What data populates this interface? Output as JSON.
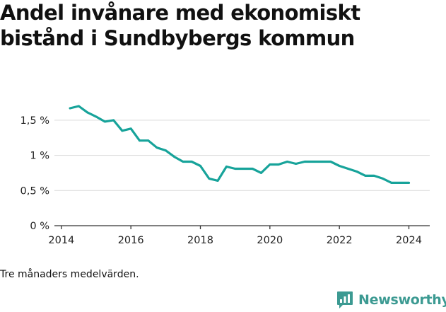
{
  "title_lines": [
    "Andel invånare med ekonomiskt",
    "bistånd i Sundbybergs kommun"
  ],
  "note": "Tre månaders medelvärden.",
  "brand": {
    "name": "Newsworthy",
    "icon": "newsworthy-logo-icon",
    "color": "#3c9a92"
  },
  "colors": {
    "line": "#17a39a",
    "grid": "#d9d9d9",
    "axis": "#333333"
  },
  "chart_data": {
    "type": "line",
    "title": "Andel invånare med ekonomiskt bistånd i Sundbybergs kommun",
    "xlabel": "",
    "ylabel": "",
    "xlim": [
      2013.8,
      2024.6
    ],
    "ylim": [
      0,
      1.7
    ],
    "x_ticks": [
      2014,
      2016,
      2018,
      2020,
      2022,
      2024
    ],
    "x_tick_labels": [
      "2014",
      "2016",
      "2018",
      "2020",
      "2022",
      "2024"
    ],
    "y_ticks": [
      0,
      0.5,
      1,
      1.5
    ],
    "y_tick_labels": [
      "0 %",
      "0,5 %",
      "1 %",
      "1,5 %"
    ],
    "grid": true,
    "legend": "none",
    "series": [
      {
        "x": [
          2014.25,
          2014.5,
          2014.75,
          2015.0,
          2015.25,
          2015.5,
          2015.75,
          2016.0,
          2016.25,
          2016.5,
          2016.75,
          2017.0,
          2017.25,
          2017.5,
          2017.75,
          2018.0,
          2018.25,
          2018.5,
          2018.75,
          2019.0,
          2019.25,
          2019.5,
          2019.75,
          2020.0,
          2020.25,
          2020.5,
          2020.75,
          2021.0,
          2021.25,
          2021.5,
          2021.75,
          2022.0,
          2022.25,
          2022.5,
          2022.75,
          2023.0,
          2023.25,
          2023.5,
          2023.75,
          2024.0
        ],
        "values": [
          1.67,
          1.7,
          1.61,
          1.55,
          1.48,
          1.5,
          1.35,
          1.38,
          1.21,
          1.21,
          1.11,
          1.07,
          0.98,
          0.91,
          0.91,
          0.85,
          0.67,
          0.64,
          0.84,
          0.81,
          0.81,
          0.81,
          0.75,
          0.87,
          0.87,
          0.91,
          0.88,
          0.91,
          0.91,
          0.91,
          0.91,
          0.85,
          0.81,
          0.77,
          0.71,
          0.71,
          0.67,
          0.61,
          0.61,
          0.61
        ]
      }
    ]
  }
}
